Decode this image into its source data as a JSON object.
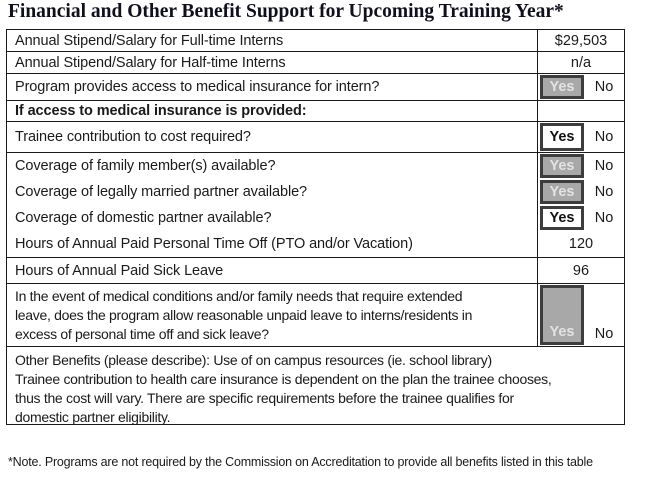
{
  "title": "Financial and Other Benefit Support for Upcoming Training Year*",
  "labels": {
    "yes": "Yes",
    "no": "No"
  },
  "colors": {
    "highlight_fill": "#a8a8a8",
    "highlight_text": "#e3e3e3",
    "box_border": "#3d3d3d",
    "table_border": "#1a1a1a"
  },
  "rows": [
    {
      "label": "Annual Stipend/Salary for Full-time Interns",
      "value": "$29,503"
    },
    {
      "label": "Annual Stipend/Salary for Half-time Interns",
      "value": "n/a"
    },
    {
      "label": "Program provides access to medical insurance for intern?",
      "answer": "Yes",
      "box_style": "gray-highlight"
    },
    {
      "label": "If access to medical insurance is provided:",
      "section": true
    },
    {
      "label": "Trainee contribution to cost required?",
      "answer": "Yes",
      "box_style": "white-outline"
    },
    {
      "label": "Coverage of family member(s) available?",
      "answer": "Yes",
      "box_style": "gray-highlight"
    },
    {
      "label": "Coverage of legally married partner available?",
      "answer": "Yes",
      "box_style": "gray-highlight"
    },
    {
      "label": "Coverage of domestic partner available?",
      "answer": "Yes",
      "box_style": "white-outline"
    },
    {
      "label": "Hours of Annual Paid Personal Time Off (PTO and/or Vacation)",
      "value": "120"
    },
    {
      "label": "Hours of Annual Paid Sick Leave",
      "value": "96"
    },
    {
      "label": "In the event of medical conditions and/or family needs that require extended\nleave, does the program allow reasonable unpaid leave to interns/residents in\nexcess of personal time off and sick leave?",
      "answer": "Yes",
      "box_style": "gray-highlight"
    },
    {
      "text": "Other Benefits (please describe): Use of on campus resources (ie. school library)\nTrainee contribution to health care insurance is dependent on the plan the trainee chooses,\nthus the cost will vary. There are specific requirements before the trainee qualifies for\ndomestic partner eligibility."
    }
  ],
  "footnote": "*Note. Programs are not required by the Commission on Accreditation to provide all benefits listed in this table"
}
